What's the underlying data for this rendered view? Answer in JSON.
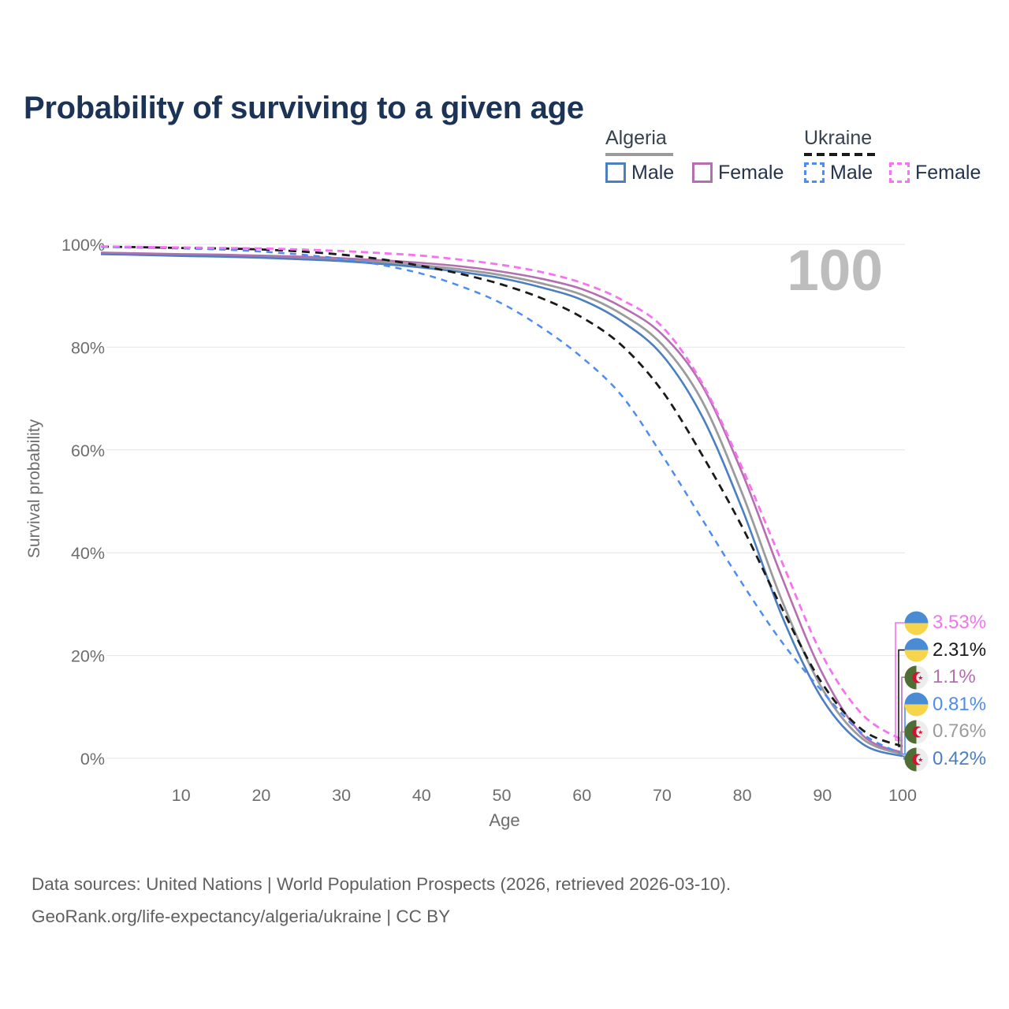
{
  "title": "Probability of surviving to a given age",
  "watermark": "100",
  "legend": {
    "position": "top-right",
    "groups": [
      {
        "country": "Algeria",
        "style": "solid",
        "underline_color": "#9b9b9b",
        "items": [
          {
            "label": "Male",
            "color": "#4c7fc0",
            "dashed": false
          },
          {
            "label": "Female",
            "color": "#b36fb0",
            "dashed": false
          }
        ]
      },
      {
        "country": "Ukraine",
        "style": "dashed",
        "underline_color": "#1a1a1a",
        "items": [
          {
            "label": "Male",
            "color": "#4d8df2",
            "dashed": true
          },
          {
            "label": "Female",
            "color": "#f772ef",
            "dashed": true
          }
        ]
      }
    ]
  },
  "chart_data": {
    "type": "line",
    "title": "Probability of surviving to a given age",
    "xlabel": "Age",
    "ylabel": "Survival probability",
    "xlim": [
      0,
      100
    ],
    "ylim": [
      0,
      100
    ],
    "x_ticks": [
      10,
      20,
      30,
      40,
      50,
      60,
      70,
      80,
      90,
      100
    ],
    "y_ticks": [
      "0%",
      "20%",
      "40%",
      "60%",
      "80%",
      "100%"
    ],
    "grid": "horizontal-only",
    "legend_position": "top-right",
    "hover_age": 100,
    "x": [
      0,
      5,
      10,
      15,
      20,
      25,
      30,
      35,
      40,
      45,
      50,
      55,
      60,
      65,
      70,
      75,
      80,
      85,
      90,
      95,
      100
    ],
    "series": [
      {
        "name": "Algeria Both sexes",
        "country": "Algeria",
        "sex": "both",
        "color": "#9b9b9b",
        "dash": null,
        "width": 2.8,
        "values": [
          98.25,
          98.1,
          97.9,
          97.75,
          97.55,
          97.3,
          97.0,
          96.5,
          95.9,
          95.1,
          94.0,
          92.4,
          90.2,
          86.4,
          80.5,
          69.5,
          51.5,
          30.5,
          13.5,
          3.8,
          0.76
        ],
        "value_at_100": "0.76%"
      },
      {
        "name": "Algeria Male",
        "country": "Algeria",
        "sex": "male",
        "color": "#4c7fc0",
        "dash": null,
        "width": 2.6,
        "values": [
          98.1,
          97.95,
          97.75,
          97.6,
          97.4,
          97.1,
          96.75,
          96.2,
          95.5,
          94.6,
          93.4,
          91.6,
          89.2,
          85.0,
          78.5,
          66.5,
          48.5,
          27.5,
          11.5,
          2.8,
          0.42
        ],
        "value_at_100": "0.42%"
      },
      {
        "name": "Algeria Female",
        "country": "Algeria",
        "sex": "female",
        "color": "#b36fb0",
        "dash": null,
        "width": 2.6,
        "values": [
          98.4,
          98.25,
          98.1,
          98.0,
          97.8,
          97.6,
          97.3,
          96.9,
          96.4,
          95.7,
          94.7,
          93.3,
          91.3,
          87.8,
          82.5,
          72.5,
          55.5,
          35.0,
          16.5,
          4.5,
          1.1
        ],
        "value_at_100": "1.1%"
      },
      {
        "name": "Ukraine Both sexes",
        "country": "Ukraine",
        "sex": "both",
        "color": "#1a1a1a",
        "dash": "10 7",
        "width": 2.8,
        "values": [
          99.55,
          99.45,
          99.3,
          99.2,
          99.0,
          98.6,
          98.0,
          97.1,
          95.8,
          94.2,
          92.2,
          89.5,
          85.8,
          80.3,
          71.5,
          59.0,
          45.0,
          29.0,
          14.5,
          5.5,
          2.31
        ],
        "value_at_100": "2.31%"
      },
      {
        "name": "Ukraine Male",
        "country": "Ukraine",
        "sex": "male",
        "color": "#4d8df2",
        "dash": "8 7",
        "width": 2.5,
        "values": [
          99.5,
          99.35,
          99.2,
          99.0,
          98.6,
          98.0,
          97.2,
          96.0,
          94.3,
          91.8,
          88.5,
          83.8,
          78.0,
          70.5,
          59.0,
          46.5,
          34.0,
          22.5,
          13.0,
          4.8,
          0.81
        ],
        "value_at_100": "0.81%"
      },
      {
        "name": "Ukraine Female",
        "country": "Ukraine",
        "sex": "female",
        "color": "#f772ef",
        "dash": "9 6",
        "width": 2.8,
        "values": [
          99.6,
          99.5,
          99.4,
          99.3,
          99.2,
          99.0,
          98.7,
          98.3,
          97.8,
          97.0,
          96.0,
          94.6,
          92.5,
          89.2,
          84.0,
          73.0,
          56.5,
          38.0,
          20.0,
          8.5,
          3.53
        ],
        "value_at_100": "3.53%"
      }
    ]
  },
  "end_labels": [
    {
      "value": "3.53%",
      "flag": "ukraine",
      "color": "#f772ef",
      "series": "Ukraine Female"
    },
    {
      "value": "2.31%",
      "flag": "ukraine",
      "color": "#1a1a1a",
      "series": "Ukraine Both sexes"
    },
    {
      "value": "1.1%",
      "flag": "algeria",
      "color": "#b36fb0",
      "series": "Algeria Female"
    },
    {
      "value": "0.81%",
      "flag": "ukraine",
      "color": "#4d8df2",
      "series": "Ukraine Male"
    },
    {
      "value": "0.76%",
      "flag": "algeria",
      "color": "#9b9b9b",
      "series": "Algeria Both sexes"
    },
    {
      "value": "0.42%",
      "flag": "algeria",
      "color": "#4c7fc0",
      "series": "Algeria Male"
    }
  ],
  "flags": {
    "ukraine": {
      "top": "#4a8bd5",
      "bottom": "#f6d44b"
    },
    "algeria": {
      "left": "#4e6e34",
      "right": "#ededed",
      "emblem": "#d21034"
    }
  },
  "footer": {
    "line1": "Data sources: United Nations | World Population Prospects (2026, retrieved 2026-03-10).",
    "line2": "GeoRank.org/life-expectancy/algeria/ukraine | CC BY"
  }
}
